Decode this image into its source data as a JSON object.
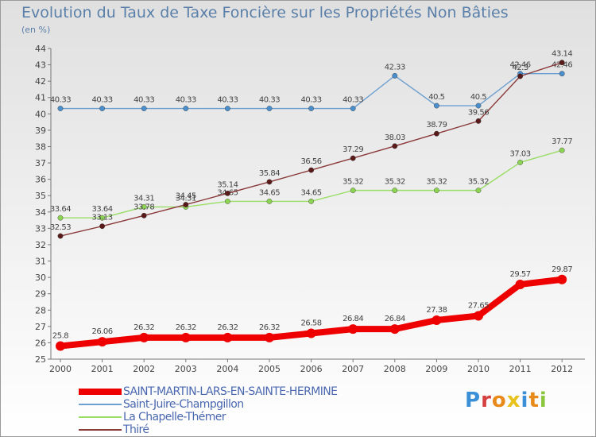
{
  "title": "Evolution du Taux de Taxe Foncière sur les Propriétés Non Bâties",
  "subtitle": "(en %)",
  "logo": {
    "text": "Proxiti",
    "letter_colors": [
      "#3b8fd6",
      "#d64040",
      "#e88a1a",
      "#e8c21a",
      "#3b8fd6",
      "#e88a1a",
      "#8cc63f"
    ]
  },
  "chart_data": {
    "type": "line",
    "title": "Evolution du Taux de Taxe Foncière sur les Propriétés Non Bâties",
    "ylabel": "(en %)",
    "xlabel": "",
    "x": [
      "2000",
      "2001",
      "2002",
      "2003",
      "2004",
      "2005",
      "2006",
      "2007",
      "2008",
      "2009",
      "2010",
      "2011",
      "2012"
    ],
    "ylim": [
      25,
      44
    ],
    "yticks": [
      25,
      26,
      27,
      28,
      29,
      30,
      31,
      32,
      33,
      34,
      35,
      36,
      37,
      38,
      39,
      40,
      41,
      42,
      43,
      44
    ],
    "grid": false,
    "legend_position": "bottom-left",
    "series": [
      {
        "name": "SAINT-MARTIN-LARS-EN-SAINTE-HERMINE",
        "color": "#ee0000",
        "thick": true,
        "values": [
          25.8,
          26.06,
          26.32,
          26.32,
          26.32,
          26.32,
          26.58,
          26.84,
          26.84,
          27.38,
          27.65,
          29.57,
          29.87
        ],
        "labels": [
          "25.8",
          "26.06",
          "26.32",
          "26.32",
          "26.32",
          "26.32",
          "26.58",
          "26.84",
          "26.84",
          "27.38",
          "27.65",
          "29.57",
          "29.87"
        ]
      },
      {
        "name": "Saint-Juire-Champgillon",
        "color": "#6c9fd0",
        "marker": "#4a8fcc",
        "thick": false,
        "values": [
          40.33,
          40.33,
          40.33,
          40.33,
          40.33,
          40.33,
          40.33,
          40.33,
          42.33,
          40.5,
          40.5,
          42.46,
          42.46
        ],
        "labels": [
          "40.33",
          "40.33",
          "40.33",
          "40.33",
          "40.33",
          "40.33",
          "40.33",
          "40.33",
          "42.33",
          "40.5",
          "40.5",
          "42.46",
          "42.46"
        ]
      },
      {
        "name": "La Chapelle-Thémer",
        "color": "#99dd66",
        "marker": "#8ed454",
        "thick": false,
        "values": [
          33.64,
          33.64,
          34.31,
          34.31,
          34.65,
          34.65,
          34.65,
          35.32,
          35.32,
          35.32,
          35.32,
          37.03,
          37.77
        ],
        "labels": [
          "33.64",
          "33.64",
          "34.31",
          "34.31",
          "34.65",
          "34.65",
          "34.65",
          "35.32",
          "35.32",
          "35.32",
          "35.32",
          "37.03",
          "37.77"
        ]
      },
      {
        "name": "Thiré",
        "color": "#8b3a3a",
        "marker": "#5a1a1a",
        "thick": false,
        "values": [
          32.53,
          33.13,
          33.78,
          34.45,
          35.14,
          35.84,
          36.56,
          37.29,
          38.03,
          38.79,
          39.56,
          42.3,
          43.14
        ],
        "labels": [
          "32.53",
          "33.13",
          "33.78",
          "34.45",
          "35.14",
          "35.84",
          "36.56",
          "37.29",
          "38.03",
          "38.79",
          "39.56",
          "42.3",
          "43.14"
        ]
      }
    ]
  }
}
